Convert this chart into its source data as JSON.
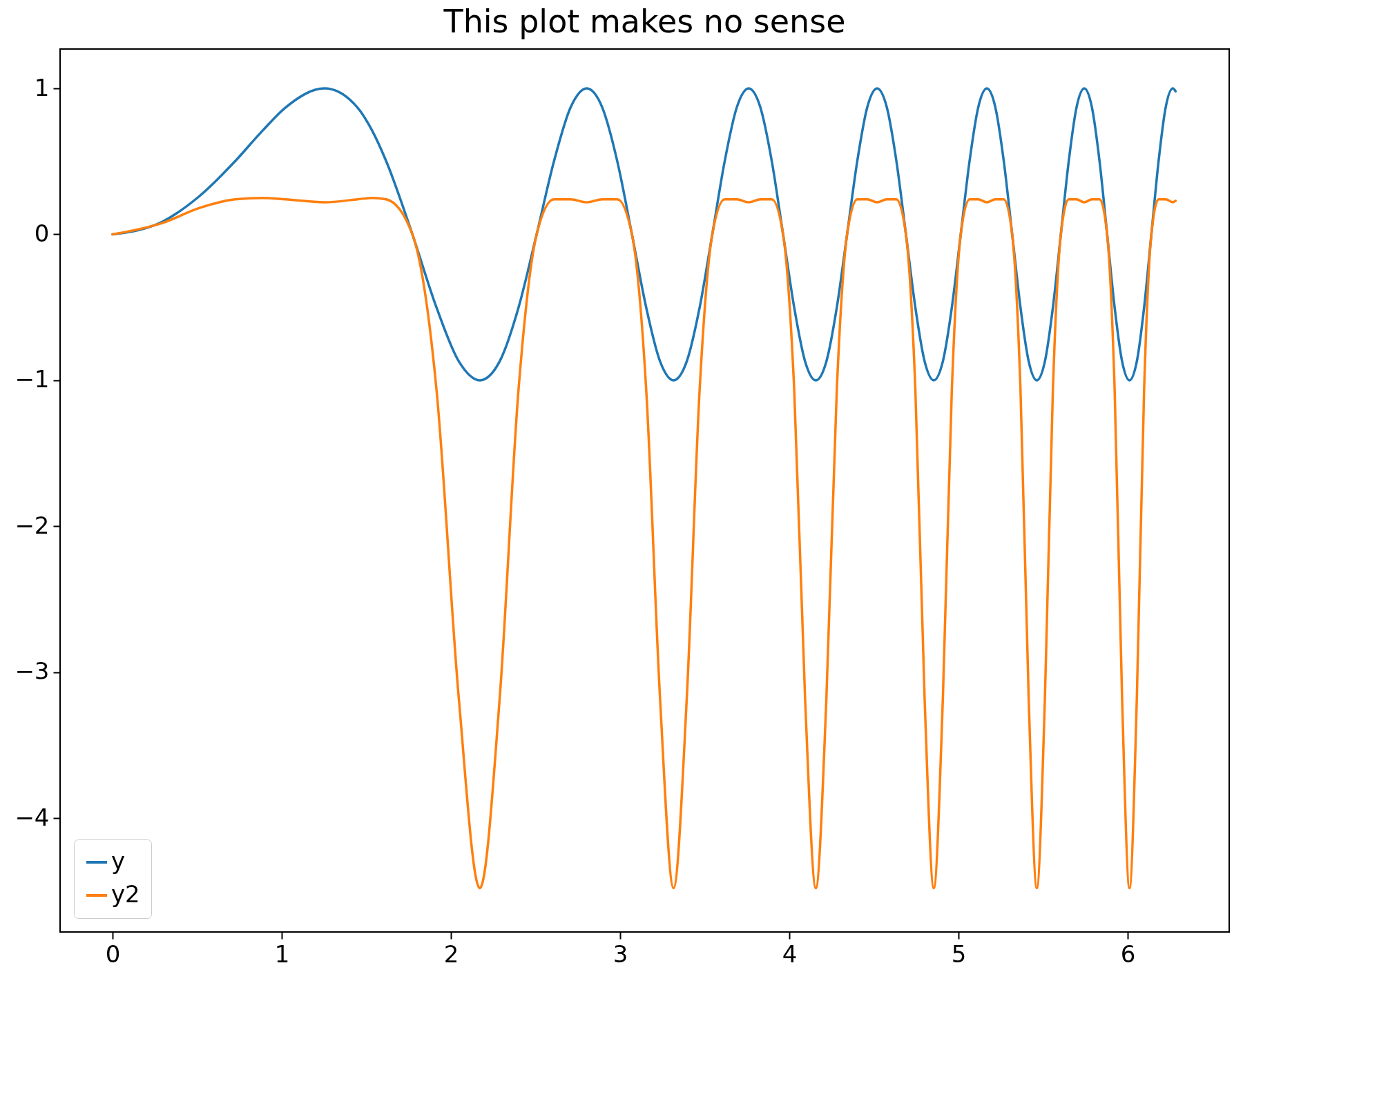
{
  "chart_data": {
    "type": "line",
    "title": "This plot makes no sense",
    "x": [
      0,
      0.3,
      0.5117,
      0.7236,
      0.8862,
      1.0233,
      1.2533,
      1.4472,
      1.535,
      1.618,
      1.7725,
      1.9145,
      2.0467,
      2.1708,
      2.2882,
      2.3999,
      2.5066,
      2.609,
      2.7075,
      2.8025,
      2.8944,
      2.9835,
      3.07,
      3.1541,
      3.2361,
      3.316,
      3.394,
      3.4703,
      3.5449,
      3.618,
      3.6897,
      3.7599,
      3.829,
      3.8967,
      3.9633,
      4.0289,
      4.0933,
      4.1568,
      4.2193,
      4.2809,
      4.3416,
      4.4015,
      4.4606,
      4.5189,
      4.5765,
      4.6333,
      4.6895,
      4.745,
      4.7998,
      4.8541,
      4.9077,
      4.9608,
      5.0133,
      5.0652,
      5.1166,
      5.1676,
      5.218,
      5.2679,
      5.3174,
      5.3664,
      5.4149,
      5.463,
      5.5108,
      5.5581,
      5.605,
      5.6515,
      5.6976,
      5.7434,
      5.7888,
      5.8338,
      5.8786,
      5.9229,
      5.967,
      6.0107,
      6.0541,
      6.0972,
      6.14,
      6.1825,
      6.2246,
      6.2666,
      6.2832
    ],
    "series": [
      {
        "name": "y",
        "color": "#1f77b4",
        "values": [
          0,
          0.09,
          0.26,
          0.5,
          0.71,
          0.87,
          1,
          0.87,
          0.71,
          0.5,
          0,
          -0.5,
          -0.87,
          -1,
          -0.87,
          -0.5,
          0,
          0.5,
          0.87,
          1,
          0.87,
          0.5,
          0,
          -0.5,
          -0.87,
          -1,
          -0.87,
          -0.5,
          0,
          0.5,
          0.87,
          1,
          0.87,
          0.5,
          0,
          -0.5,
          -0.87,
          -1,
          -0.87,
          -0.5,
          0,
          0.5,
          0.87,
          1,
          0.87,
          0.5,
          0,
          -0.5,
          -0.87,
          -1,
          -0.87,
          -0.5,
          0,
          0.5,
          0.87,
          1,
          0.87,
          0.5,
          0,
          -0.5,
          -0.87,
          -1,
          -0.87,
          -0.5,
          0,
          0.5,
          0.87,
          1,
          0.87,
          0.5,
          0,
          -0.5,
          -0.87,
          -1,
          -0.87,
          -0.5,
          0,
          0.5,
          0.87,
          1,
          0.98
        ]
      },
      {
        "name": "y2",
        "color": "#ff7f0e",
        "values": [
          0,
          0.08,
          0.18,
          0.24,
          0.25,
          0.24,
          0.22,
          0.24,
          0.25,
          0.24,
          0,
          -1.06,
          -3.18,
          -4.48,
          -3.18,
          -1.06,
          0,
          0.24,
          0.24,
          0.22,
          0.24,
          0.24,
          0,
          -1.06,
          -3.18,
          -4.48,
          -3.18,
          -1.06,
          0,
          0.24,
          0.24,
          0.22,
          0.24,
          0.24,
          0,
          -1.06,
          -3.18,
          -4.48,
          -3.18,
          -1.06,
          0,
          0.24,
          0.24,
          0.22,
          0.24,
          0.24,
          0,
          -1.06,
          -3.18,
          -4.48,
          -3.18,
          -1.06,
          0,
          0.24,
          0.24,
          0.22,
          0.24,
          0.24,
          0,
          -1.06,
          -3.18,
          -4.48,
          -3.18,
          -1.06,
          0,
          0.24,
          0.24,
          0.22,
          0.24,
          0.24,
          0,
          -1.06,
          -3.18,
          -4.48,
          -3.18,
          -1.06,
          0,
          0.24,
          0.24,
          0.22,
          0.23
        ]
      }
    ],
    "xlim": [
      -0.31,
      6.6
    ],
    "xticks": [
      0,
      1,
      2,
      3,
      4,
      5,
      6
    ],
    "ylim": [
      -4.78,
      1.27
    ],
    "yticks": [
      -4,
      -3,
      -2,
      -1,
      0,
      1
    ],
    "legend": "bottom left",
    "grid": false
  }
}
